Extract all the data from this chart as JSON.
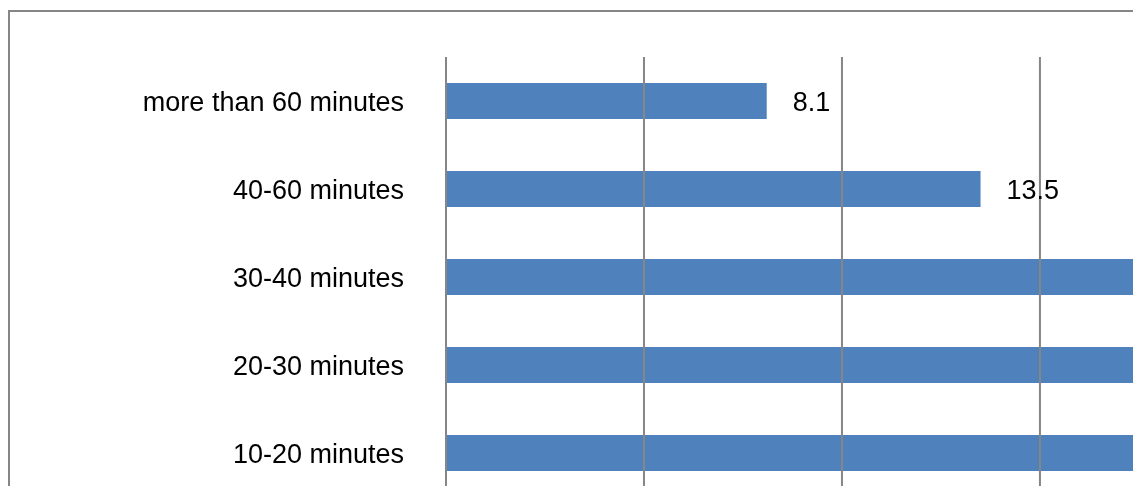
{
  "chart_data": {
    "type": "bar",
    "orientation": "horizontal",
    "categories": [
      "more than 60 minutes",
      "40-60 minutes",
      "30-40 minutes",
      "20-30 minutes",
      "10-20 minutes"
    ],
    "values": [
      8.1,
      13.5,
      17.35,
      17.35,
      17.35
    ],
    "value_labels": [
      "8.1",
      "13.5",
      null,
      null,
      null
    ],
    "color": "#4f81bd",
    "xlim": [
      0,
      17.35
    ],
    "xticks": [
      {
        "value": 0,
        "label": null
      },
      {
        "value": 5,
        "label": null
      },
      {
        "value": 10,
        "label": null
      },
      {
        "value": 15,
        "label": null
      }
    ],
    "tick_labels": "y",
    "grid": "x",
    "legend": false
  }
}
